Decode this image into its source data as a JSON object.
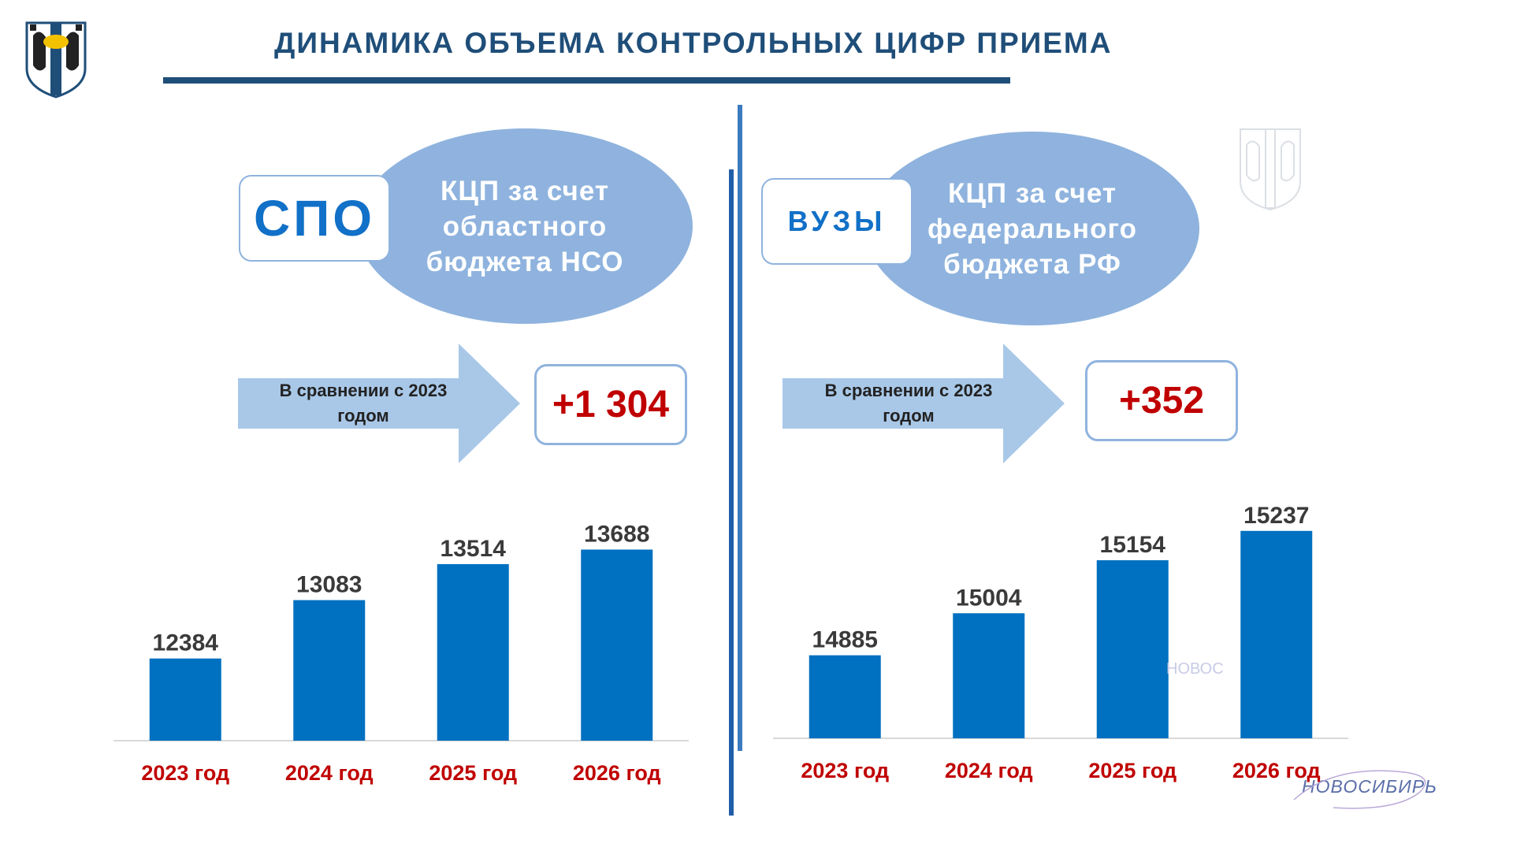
{
  "header": {
    "title": "ДИНАМИКА ОБЪЕМА КОНТРОЛЬНЫХ ЦИФР ПРИЕМА"
  },
  "colors": {
    "title": "#1f4e79",
    "bar": "#0070c0",
    "ellipse": "#8fb3de",
    "arrow": "#a9c8e8",
    "delta": "#c00000",
    "category": "#c00000"
  },
  "left_panel": {
    "tag": "СПО",
    "ellipse_lines": [
      "КЦП за счет",
      "областного",
      "бюджета НСО"
    ],
    "compare_lines": [
      "В сравнении с 2023",
      "годом"
    ],
    "delta": "+1 304"
  },
  "right_panel": {
    "tag": "ВУЗЫ",
    "ellipse_lines": [
      "КЦП за счет",
      "федерального",
      "бюджета РФ"
    ],
    "compare_lines": [
      "В сравнении с 2023",
      "годом"
    ],
    "delta": "+352"
  },
  "watermark": {
    "city_text": "НОВОСИБИРЬ",
    "ghost_text": "НОВОС"
  },
  "chart_data": [
    {
      "type": "bar",
      "categories": [
        "2023 год",
        "2024 год",
        "2025 год",
        "2026 год"
      ],
      "values": [
        12384,
        13083,
        13514,
        13688
      ],
      "data_labels": [
        "12384",
        "13083",
        "13514",
        "13688"
      ],
      "title": "",
      "xlabel": "",
      "ylabel": "",
      "ylim": [
        11400,
        13900
      ],
      "grid": false,
      "legend": "none"
    },
    {
      "type": "bar",
      "categories": [
        "2023 год",
        "2024 год",
        "2025 год",
        "2026 год"
      ],
      "values": [
        14885,
        15004,
        15154,
        15237
      ],
      "data_labels": [
        "14885",
        "15004",
        "15154",
        "15237"
      ],
      "title": "",
      "xlabel": "",
      "ylabel": "",
      "ylim": [
        14650,
        15290
      ],
      "grid": false,
      "legend": "none"
    }
  ]
}
